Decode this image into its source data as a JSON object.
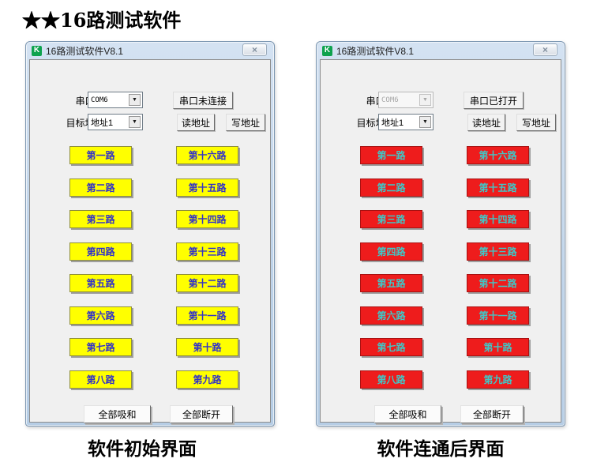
{
  "page": {
    "heading": "★★16路测试软件",
    "caption_initial": "软件初始界面",
    "caption_connected": "软件连通后界面"
  },
  "icons": {
    "app": "K",
    "close": "×",
    "dropdown": "▼"
  },
  "colors": {
    "channel_off_bg": "#ffff00",
    "channel_off_text": "#3232c8",
    "channel_on_bg": "#ee1c1c",
    "channel_on_text": "#3fc8c8"
  },
  "channels_left_col": [
    "第一路",
    "第二路",
    "第三路",
    "第四路",
    "第五路",
    "第六路",
    "第七路",
    "第八路"
  ],
  "channels_right_col": [
    "第十六路",
    "第十五路",
    "第十四路",
    "第十三路",
    "第十二路",
    "第十一路",
    "第十路",
    "第九路"
  ],
  "win_initial": {
    "title": "16路测试软件V8.1",
    "serial_label": "串口号:",
    "serial_port": "COM6",
    "serial_status_button": "串口未连接",
    "address_label": "目标地址:",
    "address_value": "地址1",
    "read_address_button": "读地址",
    "write_address_button": "写地址",
    "all_close_button": "全部吸和",
    "all_open_button": "全部断开"
  },
  "win_connected": {
    "title": "16路测试软件V8.1",
    "serial_label": "串口号:",
    "serial_port": "COM6",
    "serial_status_button": "串口已打开",
    "address_label": "目标地址:",
    "address_value": "地址1",
    "read_address_button": "读地址",
    "write_address_button": "写地址",
    "all_close_button": "全部吸和",
    "all_open_button": "全部断开"
  }
}
